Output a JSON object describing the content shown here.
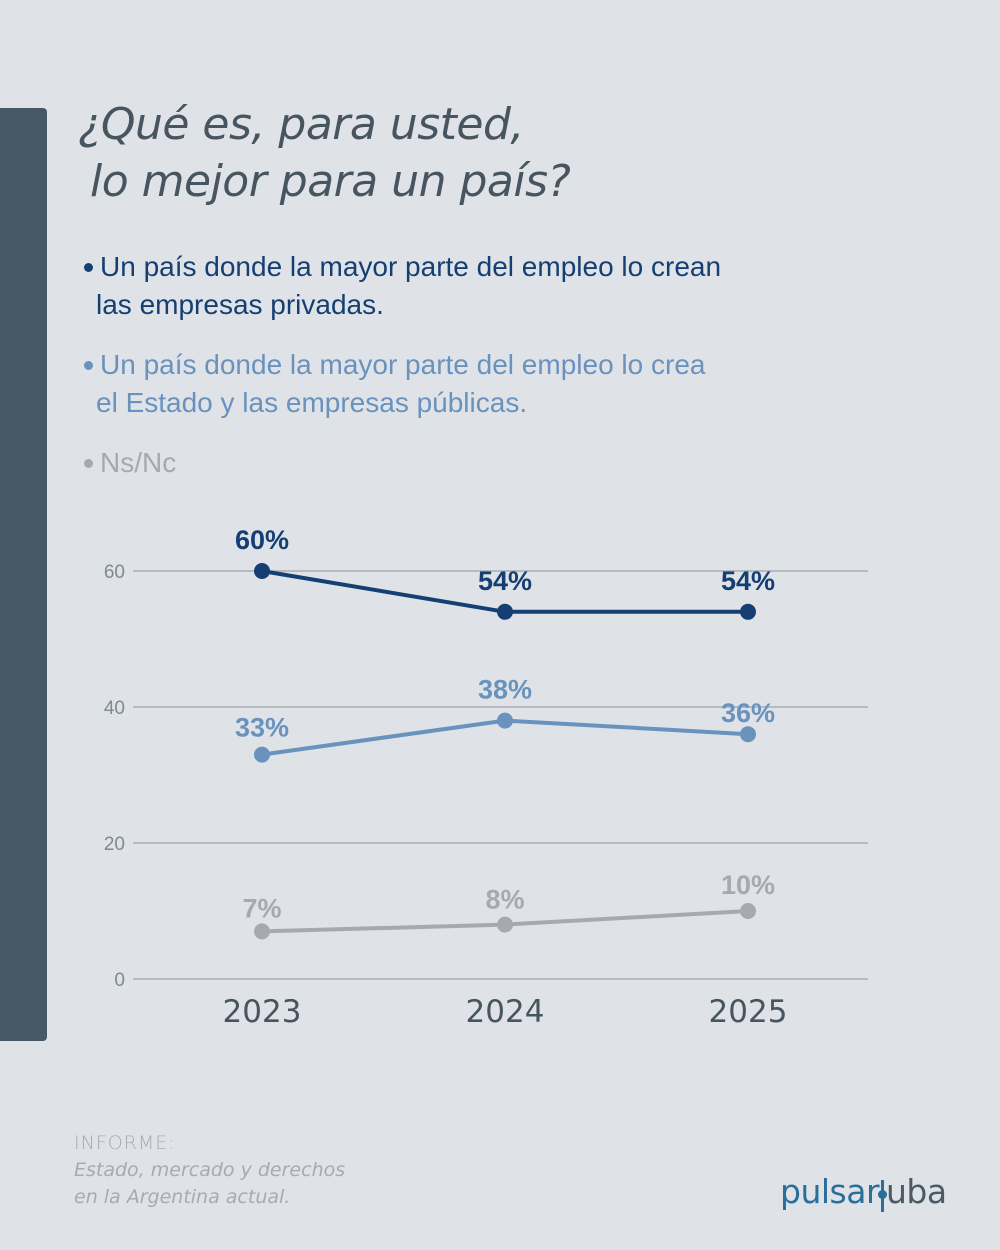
{
  "title": {
    "line1": "¿Qué es, para usted,",
    "line2": "lo mejor para un país?"
  },
  "legend": [
    {
      "line1": "Un país donde la mayor parte del empleo lo crean",
      "line2": "las empresas privadas."
    },
    {
      "line1": "Un país donde la mayor parte del empleo lo crea",
      "line2": "el Estado y las empresas públicas."
    },
    {
      "line1": "Ns/Nc",
      "line2": ""
    }
  ],
  "colors": {
    "privadas": "#153f72",
    "estado": "#6992bd",
    "nsnc": "#a6a9ad",
    "grid": "#a9aeb3",
    "axis_text": "#7d8a93",
    "year_text": "#46555f"
  },
  "chart_data": {
    "type": "line",
    "title": "¿Qué es, para usted, lo mejor para un país?",
    "xlabel": "",
    "ylabel": "",
    "categories": [
      "2023",
      "2024",
      "2025"
    ],
    "y_ticks": [
      0,
      20,
      40,
      60
    ],
    "ylim": [
      0,
      60
    ],
    "grid": true,
    "legend_position": "top",
    "series": [
      {
        "name": "Un país donde la mayor parte del empleo lo crean las empresas privadas.",
        "values": [
          60,
          54,
          54
        ],
        "labels": [
          "60%",
          "54%",
          "54%"
        ]
      },
      {
        "name": "Un país donde la mayor parte del empleo lo crea el Estado y las empresas públicas.",
        "values": [
          33,
          38,
          36
        ],
        "labels": [
          "33%",
          "38%",
          "36%"
        ]
      },
      {
        "name": "Ns/Nc",
        "values": [
          7,
          8,
          10
        ],
        "labels": [
          "7%",
          "8%",
          "10%"
        ]
      }
    ]
  },
  "footer": {
    "label": "INFORME:",
    "line1": "Estado, mercado y derechos",
    "line2": "en la Argentina actual."
  },
  "logo": {
    "part1": "pulsar",
    "part2": "uba"
  }
}
